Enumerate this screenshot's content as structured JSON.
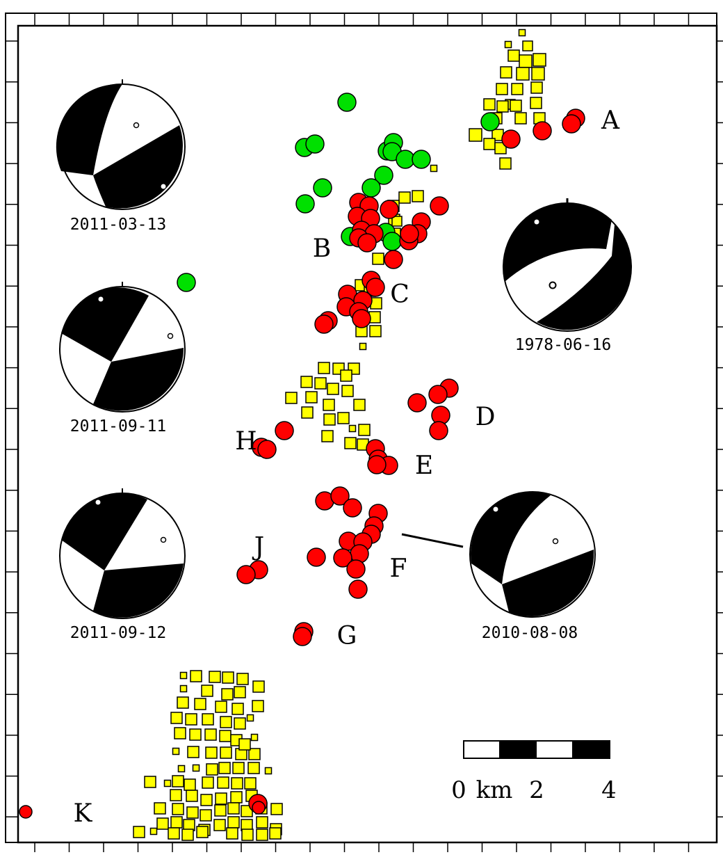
{
  "map": {
    "background": "#ffffff",
    "frame_color": "#000000",
    "colors": {
      "square_fill": "#ffff00",
      "red_circle": "#ff0000",
      "green_circle": "#00e000",
      "outline": "#000000",
      "compressional": "#000000",
      "dilatational": "#ffffff"
    }
  },
  "labels": {
    "A": "A",
    "B": "B",
    "C": "C",
    "D": "D",
    "E": "E",
    "F": "F",
    "G": "G",
    "H": "H",
    "J": "J",
    "K": "K"
  },
  "focal_mechanisms": {
    "m1": {
      "date": "2011-03-13"
    },
    "m2": {
      "date": "2011-09-11"
    },
    "m3": {
      "date": "2011-09-12"
    },
    "m4": {
      "date": "1978-06-16"
    },
    "m5": {
      "date": "2010-08-08"
    }
  },
  "scale_bar": {
    "label_0": "0",
    "unit": "km",
    "label_2": "2",
    "label_4": "4",
    "segment_colors": [
      "#ffffff",
      "#000000",
      "#ffffff",
      "#000000"
    ]
  }
}
